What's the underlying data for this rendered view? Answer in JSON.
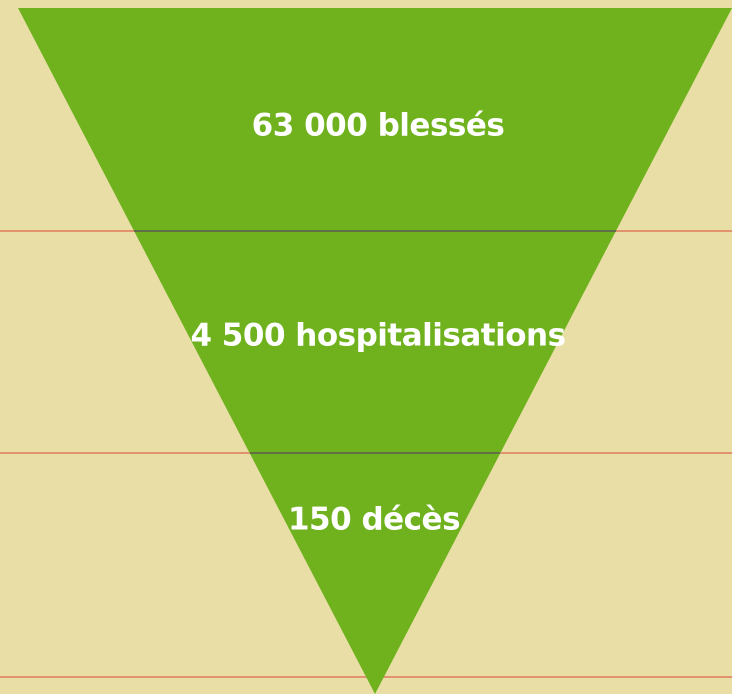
{
  "levels": [
    "63 000 blessés",
    "4 500 hospitalisations",
    "150 décès"
  ]
}
